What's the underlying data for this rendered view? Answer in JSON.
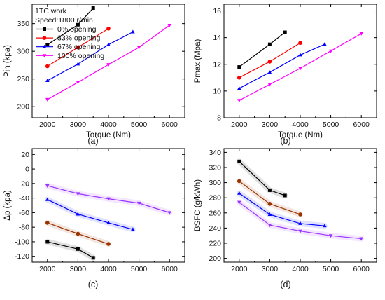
{
  "figure": {
    "panels": [
      {
        "panel_label": "(a)",
        "legend": {
          "title_lines": [
            "1TC work",
            "Speed:1800 r/min"
          ],
          "entries": [
            {
              "label": "0% opening",
              "series_index": 0
            },
            {
              "label": "33% opening",
              "series_index": 1
            },
            {
              "label": "67% opening",
              "series_index": 2
            },
            {
              "label": "100% opening",
              "series_index": 3
            }
          ]
        }
      },
      {
        "panel_label": "(b)",
        "legend": null
      },
      {
        "panel_label": "(c)",
        "legend": null
      },
      {
        "panel_label": "(d)",
        "legend": null
      }
    ]
  },
  "chart_data": [
    {
      "type": "line",
      "xlabel": "Torque (Nm)",
      "ylabel": "Pin (kpa)",
      "xlim": [
        1500,
        6500
      ],
      "ylim": [
        180,
        385
      ],
      "xticks": [
        2000,
        3000,
        4000,
        5000,
        6000
      ],
      "yticks": [
        200,
        250,
        300,
        350
      ],
      "series": [
        {
          "name": "0% opening",
          "color": "#000000",
          "marker": "square",
          "x": [
            2000,
            3000,
            3500
          ],
          "y": [
            312,
            348,
            378
          ]
        },
        {
          "name": "33% opening",
          "color": "#ff0000",
          "marker": "circle",
          "x": [
            2000,
            3000,
            4000
          ],
          "y": [
            273,
            307,
            341
          ]
        },
        {
          "name": "67% opening",
          "color": "#0000ff",
          "marker": "triangle-up",
          "x": [
            2000,
            3000,
            4000,
            4800
          ],
          "y": [
            247,
            277,
            312,
            335
          ]
        },
        {
          "name": "100% opening",
          "color": "#ff00ff",
          "marker": "triangle-down",
          "x": [
            2000,
            3000,
            4000,
            5000,
            6000
          ],
          "y": [
            213,
            244,
            276,
            307,
            347
          ]
        }
      ]
    },
    {
      "type": "line",
      "xlabel": "Torque (Nm)",
      "ylabel": "Pmax (Mpa)",
      "xlim": [
        1500,
        6500
      ],
      "ylim": [
        8,
        16.5
      ],
      "xticks": [
        2000,
        3000,
        4000,
        5000,
        6000
      ],
      "yticks": [
        8,
        10,
        12,
        14,
        16
      ],
      "series": [
        {
          "color": "#000000",
          "marker": "square",
          "x": [
            2000,
            3000,
            3500
          ],
          "y": [
            11.8,
            13.5,
            14.4
          ]
        },
        {
          "color": "#ff0000",
          "marker": "circle",
          "x": [
            2000,
            3000,
            4000
          ],
          "y": [
            11.0,
            12.2,
            13.6
          ]
        },
        {
          "color": "#0000ff",
          "marker": "triangle-up",
          "x": [
            2000,
            3000,
            4000,
            4800
          ],
          "y": [
            10.2,
            11.4,
            12.7,
            13.5
          ]
        },
        {
          "color": "#ff00ff",
          "marker": "triangle-down",
          "x": [
            2000,
            3000,
            4000,
            5000,
            6000
          ],
          "y": [
            9.3,
            10.5,
            11.7,
            13.0,
            14.3
          ]
        }
      ]
    },
    {
      "type": "line",
      "xlabel": "",
      "ylabel": "Δp (kpa)",
      "xlim": [
        1500,
        6500
      ],
      "ylim": [
        -128,
        28
      ],
      "xticks": [
        2000,
        3000,
        4000,
        5000,
        6000
      ],
      "yticks": [
        20,
        0,
        -20,
        -40,
        -60,
        -80,
        -100,
        -120
      ],
      "series": [
        {
          "color": "#000000",
          "marker": "square",
          "x": [
            2000,
            3000,
            3500
          ],
          "y": [
            -100,
            -110,
            -122
          ]
        },
        {
          "color": "#993300",
          "marker": "circle",
          "x": [
            2000,
            3000,
            4000
          ],
          "y": [
            -74,
            -89,
            -103
          ]
        },
        {
          "color": "#0000ff",
          "marker": "triangle-up",
          "x": [
            2000,
            3000,
            4000,
            4800
          ],
          "y": [
            -42,
            -62,
            -74,
            -83
          ]
        },
        {
          "color": "#9933ff",
          "marker": "triangle-down",
          "x": [
            2000,
            3000,
            4000,
            5000,
            6000
          ],
          "y": [
            -23,
            -34,
            -41,
            -47,
            -60
          ]
        }
      ]
    },
    {
      "type": "line",
      "xlabel": "",
      "ylabel": "BSFC (g/kWh)",
      "xlim": [
        1500,
        6500
      ],
      "ylim": [
        195,
        345
      ],
      "xticks": [
        2000,
        3000,
        4000,
        5000,
        6000
      ],
      "yticks": [
        200,
        220,
        240,
        260,
        280,
        300,
        320,
        340
      ],
      "series": [
        {
          "color": "#000000",
          "marker": "square",
          "x": [
            2000,
            3000,
            3500
          ],
          "y": [
            328,
            290,
            283
          ]
        },
        {
          "color": "#993300",
          "marker": "circle",
          "x": [
            2000,
            3000,
            4000
          ],
          "y": [
            302,
            272,
            258
          ]
        },
        {
          "color": "#0000ff",
          "marker": "triangle-up",
          "x": [
            2000,
            3000,
            4000,
            4800
          ],
          "y": [
            286,
            258,
            246,
            243
          ]
        },
        {
          "color": "#9933ff",
          "marker": "triangle-down",
          "x": [
            2000,
            3000,
            4000,
            5000,
            6000
          ],
          "y": [
            274,
            244,
            236,
            230,
            226
          ]
        }
      ]
    }
  ]
}
